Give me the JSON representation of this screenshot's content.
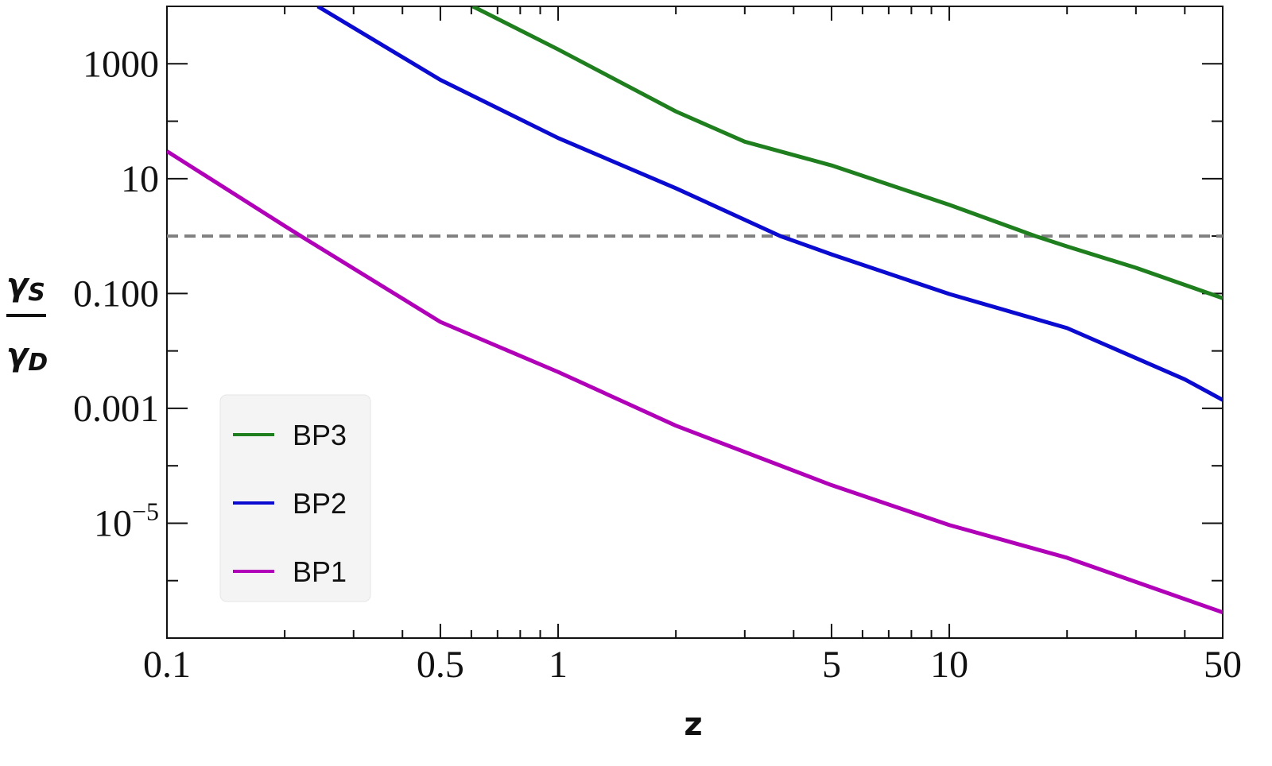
{
  "chart_data": {
    "type": "line",
    "x_label": "z",
    "y_label": {
      "numerator": "γ",
      "numerator_sub": "S",
      "denominator": "γ",
      "denominator_sub": "D"
    },
    "xscale": "log",
    "yscale": "log",
    "xlim": [
      0.1,
      50
    ],
    "ylim": [
      1e-07,
      10000
    ],
    "xticks": [
      0.1,
      0.5,
      1,
      5,
      10,
      50
    ],
    "xminor_ticks": [
      0.2,
      0.3,
      0.4,
      0.6,
      0.7,
      0.8,
      0.9,
      2,
      3,
      4,
      6,
      7,
      8,
      9,
      20,
      30,
      40
    ],
    "yticks": [
      1000,
      10,
      {
        "value": 0.1,
        "label": "0.100"
      },
      0.001,
      {
        "value": 1e-05,
        "label": "10",
        "exponent": "−5"
      }
    ],
    "yminor_ticks": [
      100,
      1,
      0.01,
      0.0001,
      1e-06
    ],
    "reference_line": {
      "y": 1,
      "color": "#808080"
    },
    "legend_position": "lower left",
    "series": [
      {
        "name": "BP3",
        "color": "#1f7f1f",
        "x": [
          0.605,
          1,
          2,
          3,
          5,
          10,
          16.6,
          20,
          30,
          50
        ],
        "values": [
          10000,
          1780,
          148,
          44,
          17,
          3.5,
          1,
          0.66,
          0.28,
          0.083
        ]
      },
      {
        "name": "BP2",
        "color": "#0a0ad0",
        "x": [
          0.243,
          0.5,
          1,
          2,
          3.7,
          5,
          10,
          20,
          40,
          50
        ],
        "values": [
          10000,
          525,
          51,
          6.8,
          1,
          0.48,
          0.098,
          0.025,
          0.0032,
          0.0014
        ]
      },
      {
        "name": "BP1",
        "color": "#b000b8",
        "x": [
          0.1,
          0.2,
          0.22,
          0.5,
          1,
          2,
          5,
          10,
          20,
          50
        ],
        "values": [
          30,
          1.5,
          1,
          0.032,
          0.0043,
          0.0005,
          4.6e-05,
          9.3e-06,
          2.5e-06,
          2.8e-07
        ]
      }
    ]
  }
}
